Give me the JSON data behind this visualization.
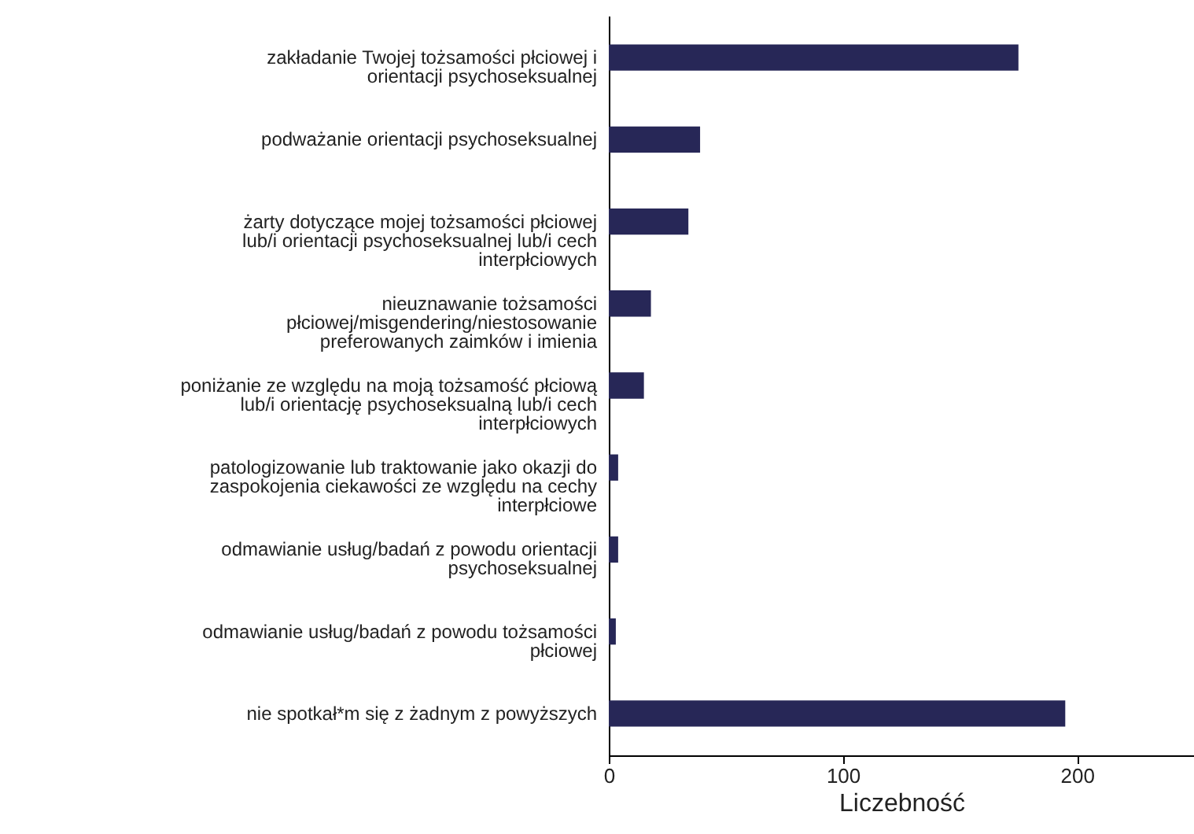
{
  "chart_data": {
    "type": "bar",
    "orientation": "horizontal",
    "xlabel": "Liczebność",
    "categories": [
      "zakładanie Twojej tożsamości płciowej i orientacji psychoseksualnej",
      "podważanie orientacji psychoseksualnej",
      "żarty dotyczące mojej tożsamości płciowej lub/i orientacji psychoseksualnej lub/i cech interpłciowych",
      "nieuznawanie tożsamości płciowej/misgendering/niestosowanie preferowanych zaimków i imienia",
      "poniżanie ze względu na moją tożsamość płciową lub/i orientację psychoseksualną lub/i cech interpłciowych",
      "patologizowanie lub traktowanie jako okazji do zaspokojenia ciekawości ze względu na cechy interpłciowe",
      "odmawianie usług/badań z powodu orientacji psychoseksualnej",
      "odmawianie usług/badań z powodu tożsamości płciowej",
      "nie spotkał*m się z żadnym z powyższych"
    ],
    "values": [
      175,
      39,
      34,
      18,
      15,
      4,
      4,
      3,
      195
    ],
    "color": "#272757",
    "xlim": [
      0,
      250
    ],
    "xticks": [
      0,
      100,
      200
    ],
    "grid": false
  }
}
